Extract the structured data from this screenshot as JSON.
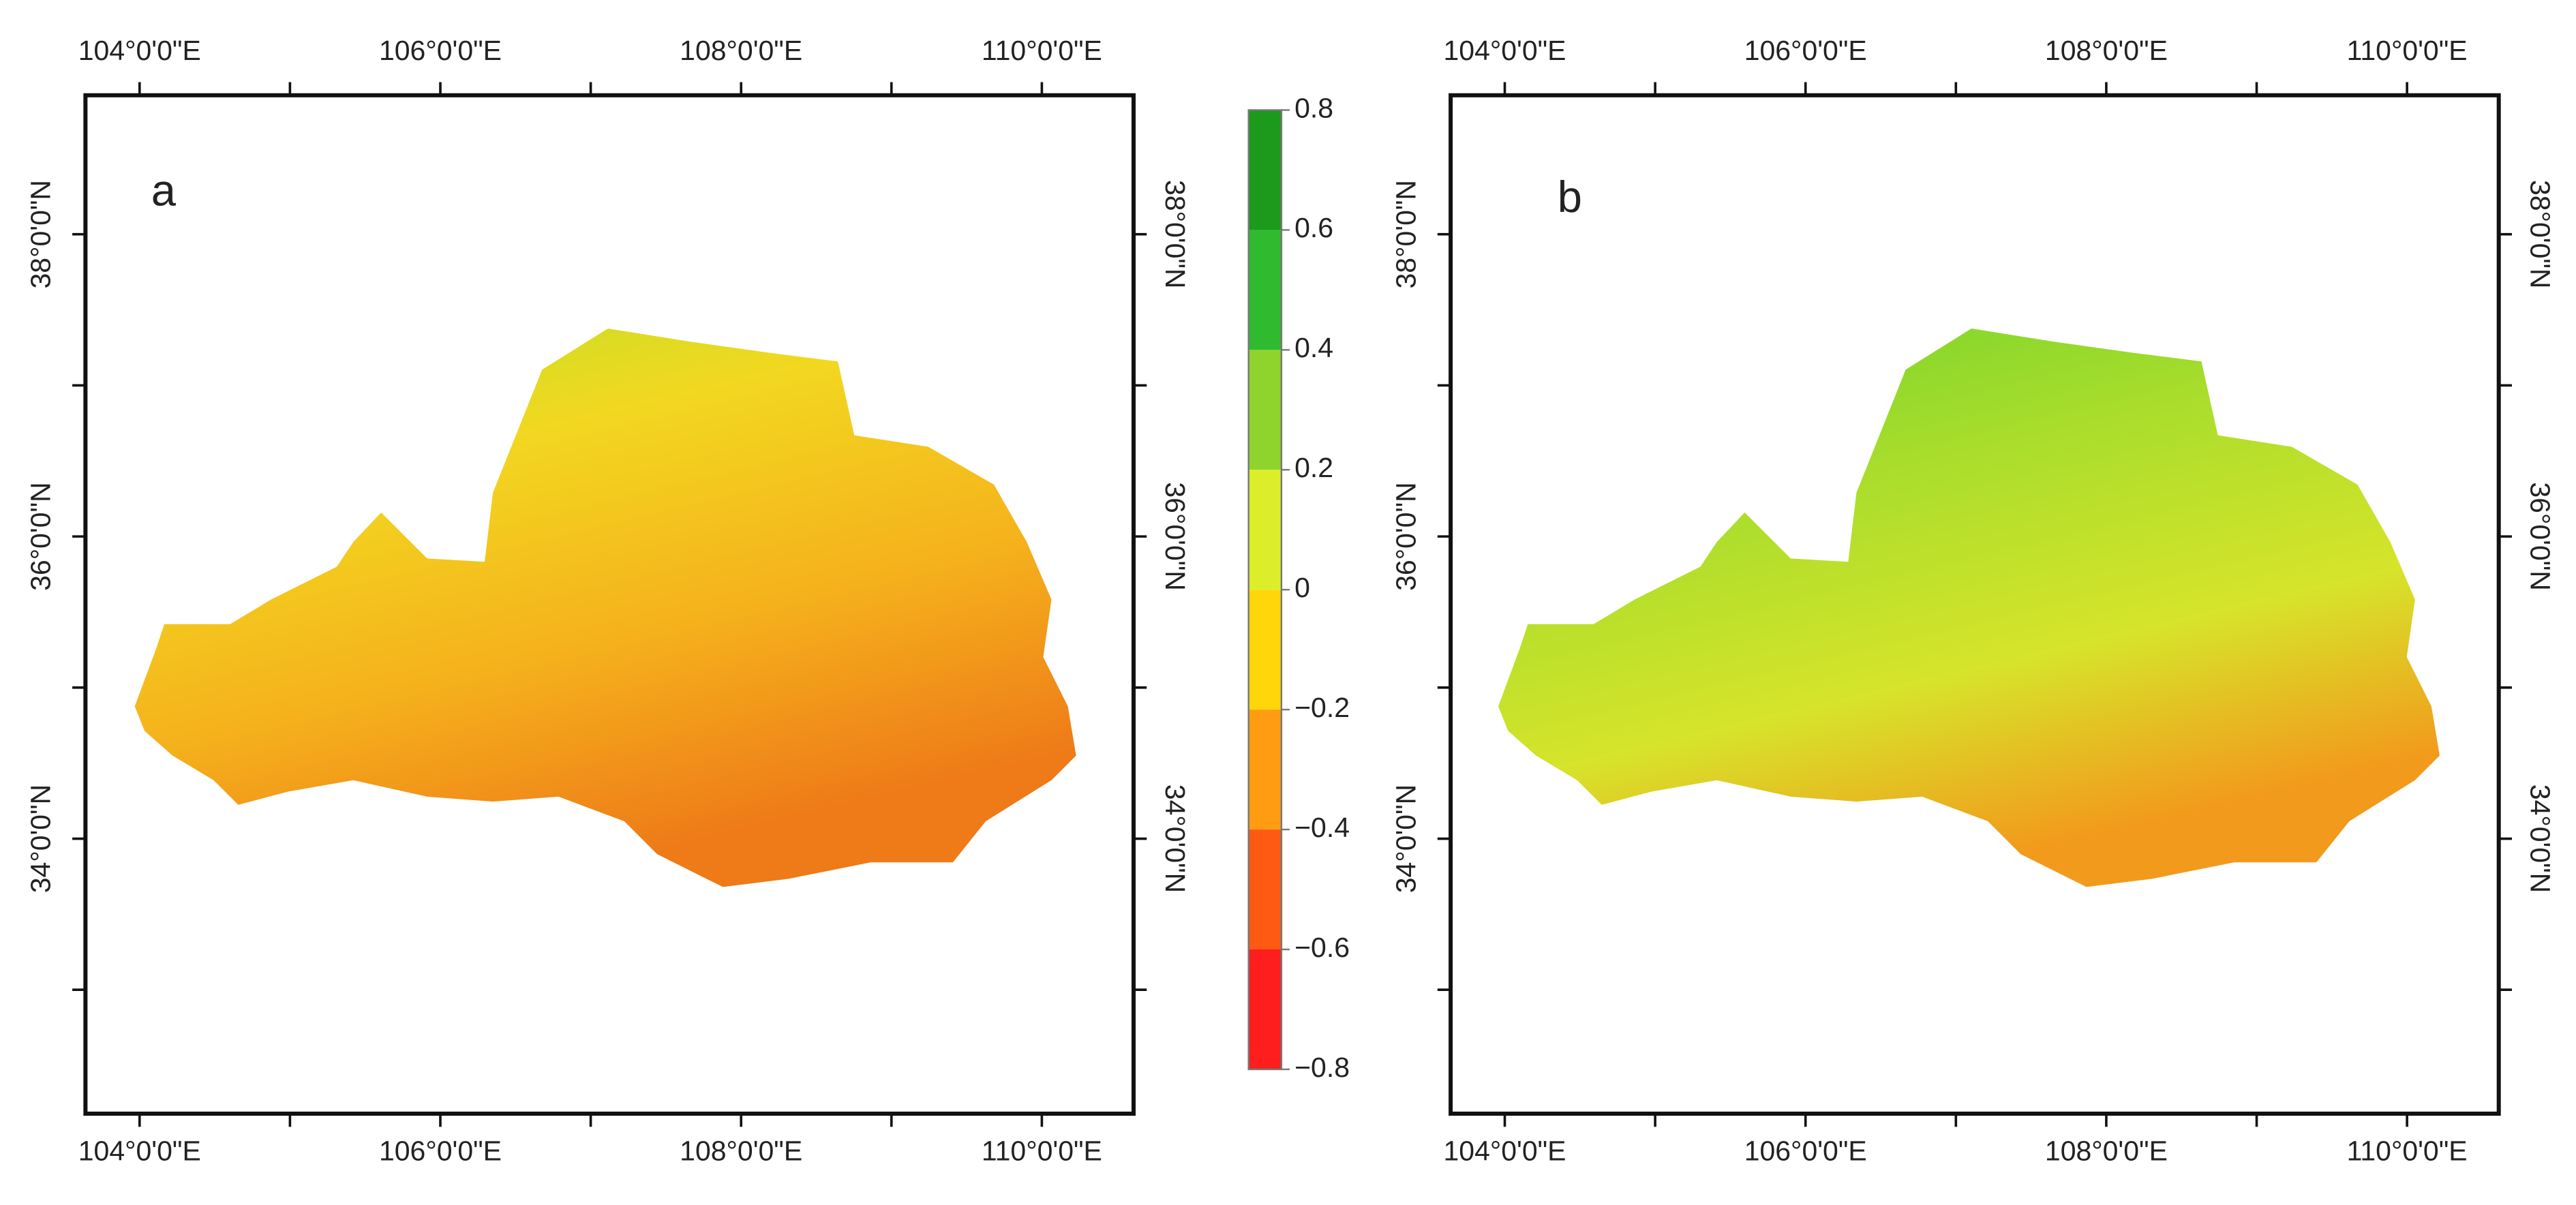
{
  "panels": [
    {
      "label": "a"
    },
    {
      "label": "b"
    }
  ],
  "axes": {
    "xlim": [
      103.64,
      110.61
    ],
    "ylim": [
      32.18,
      38.92
    ],
    "xticks": [
      {
        "value": 104,
        "label": "104°0'0\"E"
      },
      {
        "value": 106,
        "label": "106°0'0\"E"
      },
      {
        "value": 108,
        "label": "108°0'0\"E"
      },
      {
        "value": 110,
        "label": "110°0'0\"E"
      }
    ],
    "yticks": [
      {
        "value": 34,
        "label": "34°0'0\"N"
      },
      {
        "value": 36,
        "label": "36°0'0\"N"
      },
      {
        "value": 38,
        "label": "38°0'0\"N"
      }
    ],
    "minor_xticks": [
      105,
      107,
      109
    ],
    "minor_yticks": [
      33,
      35,
      37
    ]
  },
  "colorbar": {
    "range": [
      -0.8,
      0.8
    ],
    "ticks": [
      {
        "value": -0.8,
        "label": "−0.8"
      },
      {
        "value": -0.6,
        "label": "−0.6"
      },
      {
        "value": -0.4,
        "label": "−0.4"
      },
      {
        "value": -0.2,
        "label": "−0.2"
      },
      0,
      0.2,
      0.4,
      0.6,
      0.8
    ],
    "colors": [
      "#ff1e1e",
      "#ff5a14",
      "#ff9c12",
      "#ffd60a",
      "#dcee2a",
      "#8fd42c",
      "#2fba2f",
      "#1b9a1b"
    ]
  }
}
